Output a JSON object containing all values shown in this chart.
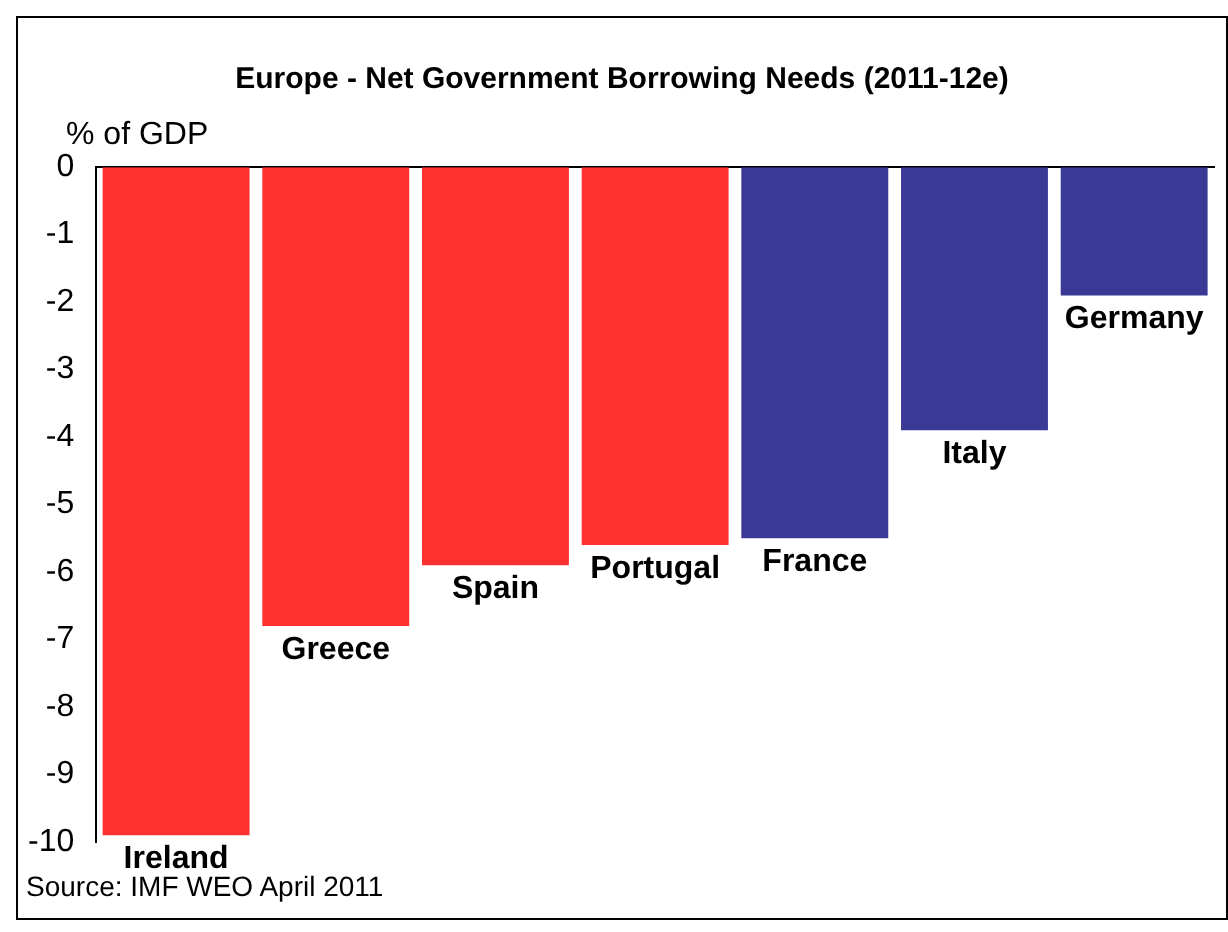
{
  "chart_data": {
    "type": "bar",
    "title": "Europe - Net Government Borrowing Needs (2011-12e)",
    "ylabel": "% of GDP",
    "categories": [
      "Ireland",
      "Greece",
      "Spain",
      "Portugal",
      "France",
      "Italy",
      "Germany"
    ],
    "values": [
      -9.9,
      -6.8,
      -5.9,
      -5.6,
      -5.5,
      -3.9,
      -1.9
    ],
    "colors": [
      "#ff3030",
      "#ff3030",
      "#ff3030",
      "#ff3030",
      "#3a3a96",
      "#3a3a96",
      "#3a3a96"
    ],
    "ylim": [
      -10,
      0
    ],
    "yticks": [
      -10,
      -9,
      -8,
      -7,
      -6,
      -5,
      -4,
      -3,
      -2,
      -1,
      0
    ],
    "grid": false,
    "legend": false,
    "annotations": [
      "Source: IMF WEO April 2011"
    ]
  }
}
